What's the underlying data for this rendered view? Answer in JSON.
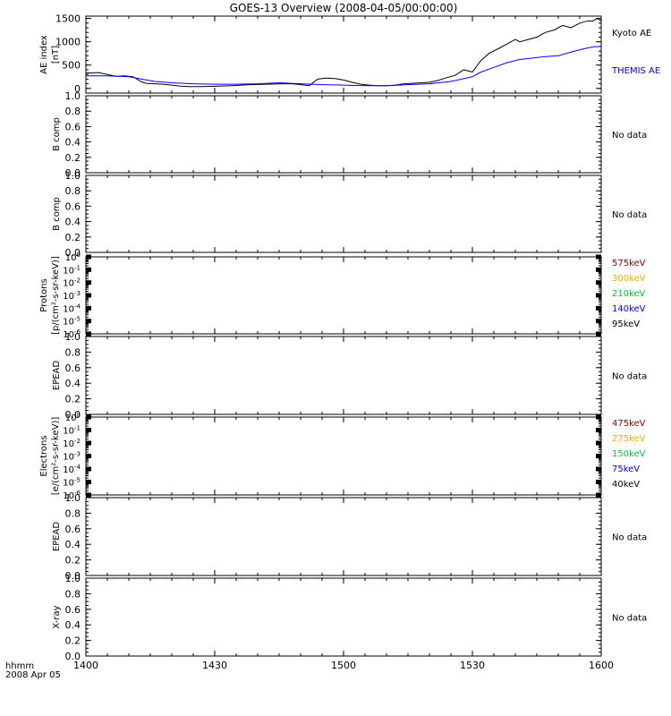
{
  "title": "GOES-13 Overview (2008-04-05/00:00:00)",
  "footer": {
    "line1": "hhmm",
    "line2": "2008 Apr 05"
  },
  "colors": {
    "black": "#000000",
    "blue": "#0000ff",
    "green": "#00cc33",
    "orange": "#ffaa00",
    "darkred": "#880000"
  },
  "chart_data": {
    "type": "line",
    "x_ticks": [
      "1400",
      "1430",
      "1500",
      "1530",
      "1600"
    ],
    "x_range_minutes": [
      840,
      960
    ],
    "panels": [
      {
        "id": "ae",
        "ylabel": [
          "AE index",
          "[nT]"
        ],
        "ylim": [
          -100,
          1550
        ],
        "yticks": [
          "0",
          "500",
          "1000",
          "1500"
        ],
        "series": [
          {
            "name": "Kyoto AE",
            "color": "#000000",
            "x": [
              840,
              843,
              845,
              847,
              849,
              851,
              853,
              854,
              856,
              858,
              860,
              862,
              864,
              867,
              870,
              874,
              878,
              882,
              886,
              888,
              890,
              892,
              894,
              896,
              898,
              900,
              902,
              904,
              906,
              908,
              910,
              912,
              914,
              916,
              918,
              920,
              922,
              924,
              926,
              928,
              930,
              932,
              934,
              936,
              938,
              940,
              941,
              943,
              945,
              947,
              949,
              951,
              953,
              955,
              957,
              958,
              959,
              960
            ],
            "y": [
              330,
              340,
              300,
              260,
              270,
              250,
              140,
              110,
              100,
              90,
              70,
              50,
              40,
              40,
              45,
              60,
              80,
              90,
              100,
              100,
              80,
              60,
              200,
              220,
              210,
              180,
              130,
              90,
              70,
              60,
              60,
              70,
              100,
              110,
              120,
              130,
              170,
              230,
              280,
              400,
              350,
              600,
              760,
              850,
              950,
              1050,
              1000,
              1050,
              1100,
              1200,
              1250,
              1350,
              1300,
              1400,
              1450,
              1440,
              1500,
              1450
            ]
          },
          {
            "name": "THEMIS AE",
            "color": "#0000ff",
            "x": [
              840,
              845,
              850,
              853,
              856,
              860,
              865,
              870,
              875,
              880,
              885,
              890,
              895,
              900,
              905,
              910,
              915,
              920,
              925,
              930,
              932,
              935,
              938,
              941,
              944,
              947,
              950,
              953,
              956,
              958,
              960
            ],
            "y": [
              270,
              270,
              250,
              200,
              150,
              120,
              100,
              90,
              90,
              100,
              120,
              100,
              80,
              70,
              60,
              60,
              80,
              100,
              150,
              250,
              350,
              450,
              550,
              620,
              650,
              680,
              700,
              780,
              850,
              890,
              900
            ]
          }
        ],
        "legend": [
          {
            "label": "Kyoto AE",
            "color": "#000000"
          },
          {
            "label": "THEMIS AE",
            "color": "#0000ff"
          }
        ]
      },
      {
        "id": "bcomp1",
        "ylabel": [
          "B comp"
        ],
        "ylim": [
          0,
          1
        ],
        "yticks": [
          "0.0",
          "0.2",
          "0.4",
          "0.6",
          "0.8",
          "1.0"
        ],
        "legend": [
          {
            "label": "No data",
            "color": "#000000"
          }
        ]
      },
      {
        "id": "bcomp2",
        "ylabel": [
          "B comp"
        ],
        "ylim": [
          0,
          1
        ],
        "yticks": [
          "0.0",
          "0.2",
          "0.4",
          "0.6",
          "0.8",
          "1.0"
        ],
        "legend": [
          {
            "label": "No data",
            "color": "#000000"
          }
        ]
      },
      {
        "id": "protons",
        "scale": "log",
        "ylabel": [
          "Protons",
          "[p/(cm²-s-sr-keV)]"
        ],
        "ylim_exp": [
          -6,
          0
        ],
        "yticks_exp": [
          "-6",
          "-5",
          "-4",
          "-3",
          "-2",
          "-1",
          "0"
        ],
        "legend": [
          {
            "label": "575keV",
            "color": "#880000"
          },
          {
            "label": "300keV",
            "color": "#ffaa00"
          },
          {
            "label": "210keV",
            "color": "#00cc33"
          },
          {
            "label": "140keV",
            "color": "#0000ff"
          },
          {
            "label": "95keV",
            "color": "#000000"
          }
        ]
      },
      {
        "id": "epead1",
        "ylabel": [
          "EPEAD"
        ],
        "ylim": [
          0,
          1
        ],
        "yticks": [
          "0.0",
          "0.2",
          "0.4",
          "0.6",
          "0.8",
          "1.0"
        ],
        "legend": [
          {
            "label": "No data",
            "color": "#000000"
          }
        ]
      },
      {
        "id": "electrons",
        "scale": "log",
        "ylabel": [
          "Electrons",
          "[e/(cm²-s-sr-keV)]"
        ],
        "ylim_exp": [
          -6,
          0
        ],
        "yticks_exp": [
          "-6",
          "-5",
          "-4",
          "-3",
          "-2",
          "-1",
          "0"
        ],
        "legend": [
          {
            "label": "475keV",
            "color": "#880000"
          },
          {
            "label": "275keV",
            "color": "#ffaa00"
          },
          {
            "label": "150keV",
            "color": "#00cc33"
          },
          {
            "label": "75keV",
            "color": "#0000ff"
          },
          {
            "label": "40keV",
            "color": "#000000"
          }
        ]
      },
      {
        "id": "epead2",
        "ylabel": [
          "EPEAD"
        ],
        "ylim": [
          0,
          1
        ],
        "yticks": [
          "0.0",
          "0.2",
          "0.4",
          "0.6",
          "0.8",
          "1.0"
        ],
        "legend": [
          {
            "label": "No data",
            "color": "#000000"
          }
        ]
      },
      {
        "id": "xray",
        "ylabel": [
          "X-ray"
        ],
        "ylim": [
          0,
          1
        ],
        "yticks": [
          "0.0",
          "0.2",
          "0.4",
          "0.6",
          "0.8",
          "1.0"
        ],
        "legend": [
          {
            "label": "No data",
            "color": "#000000"
          }
        ]
      }
    ]
  }
}
